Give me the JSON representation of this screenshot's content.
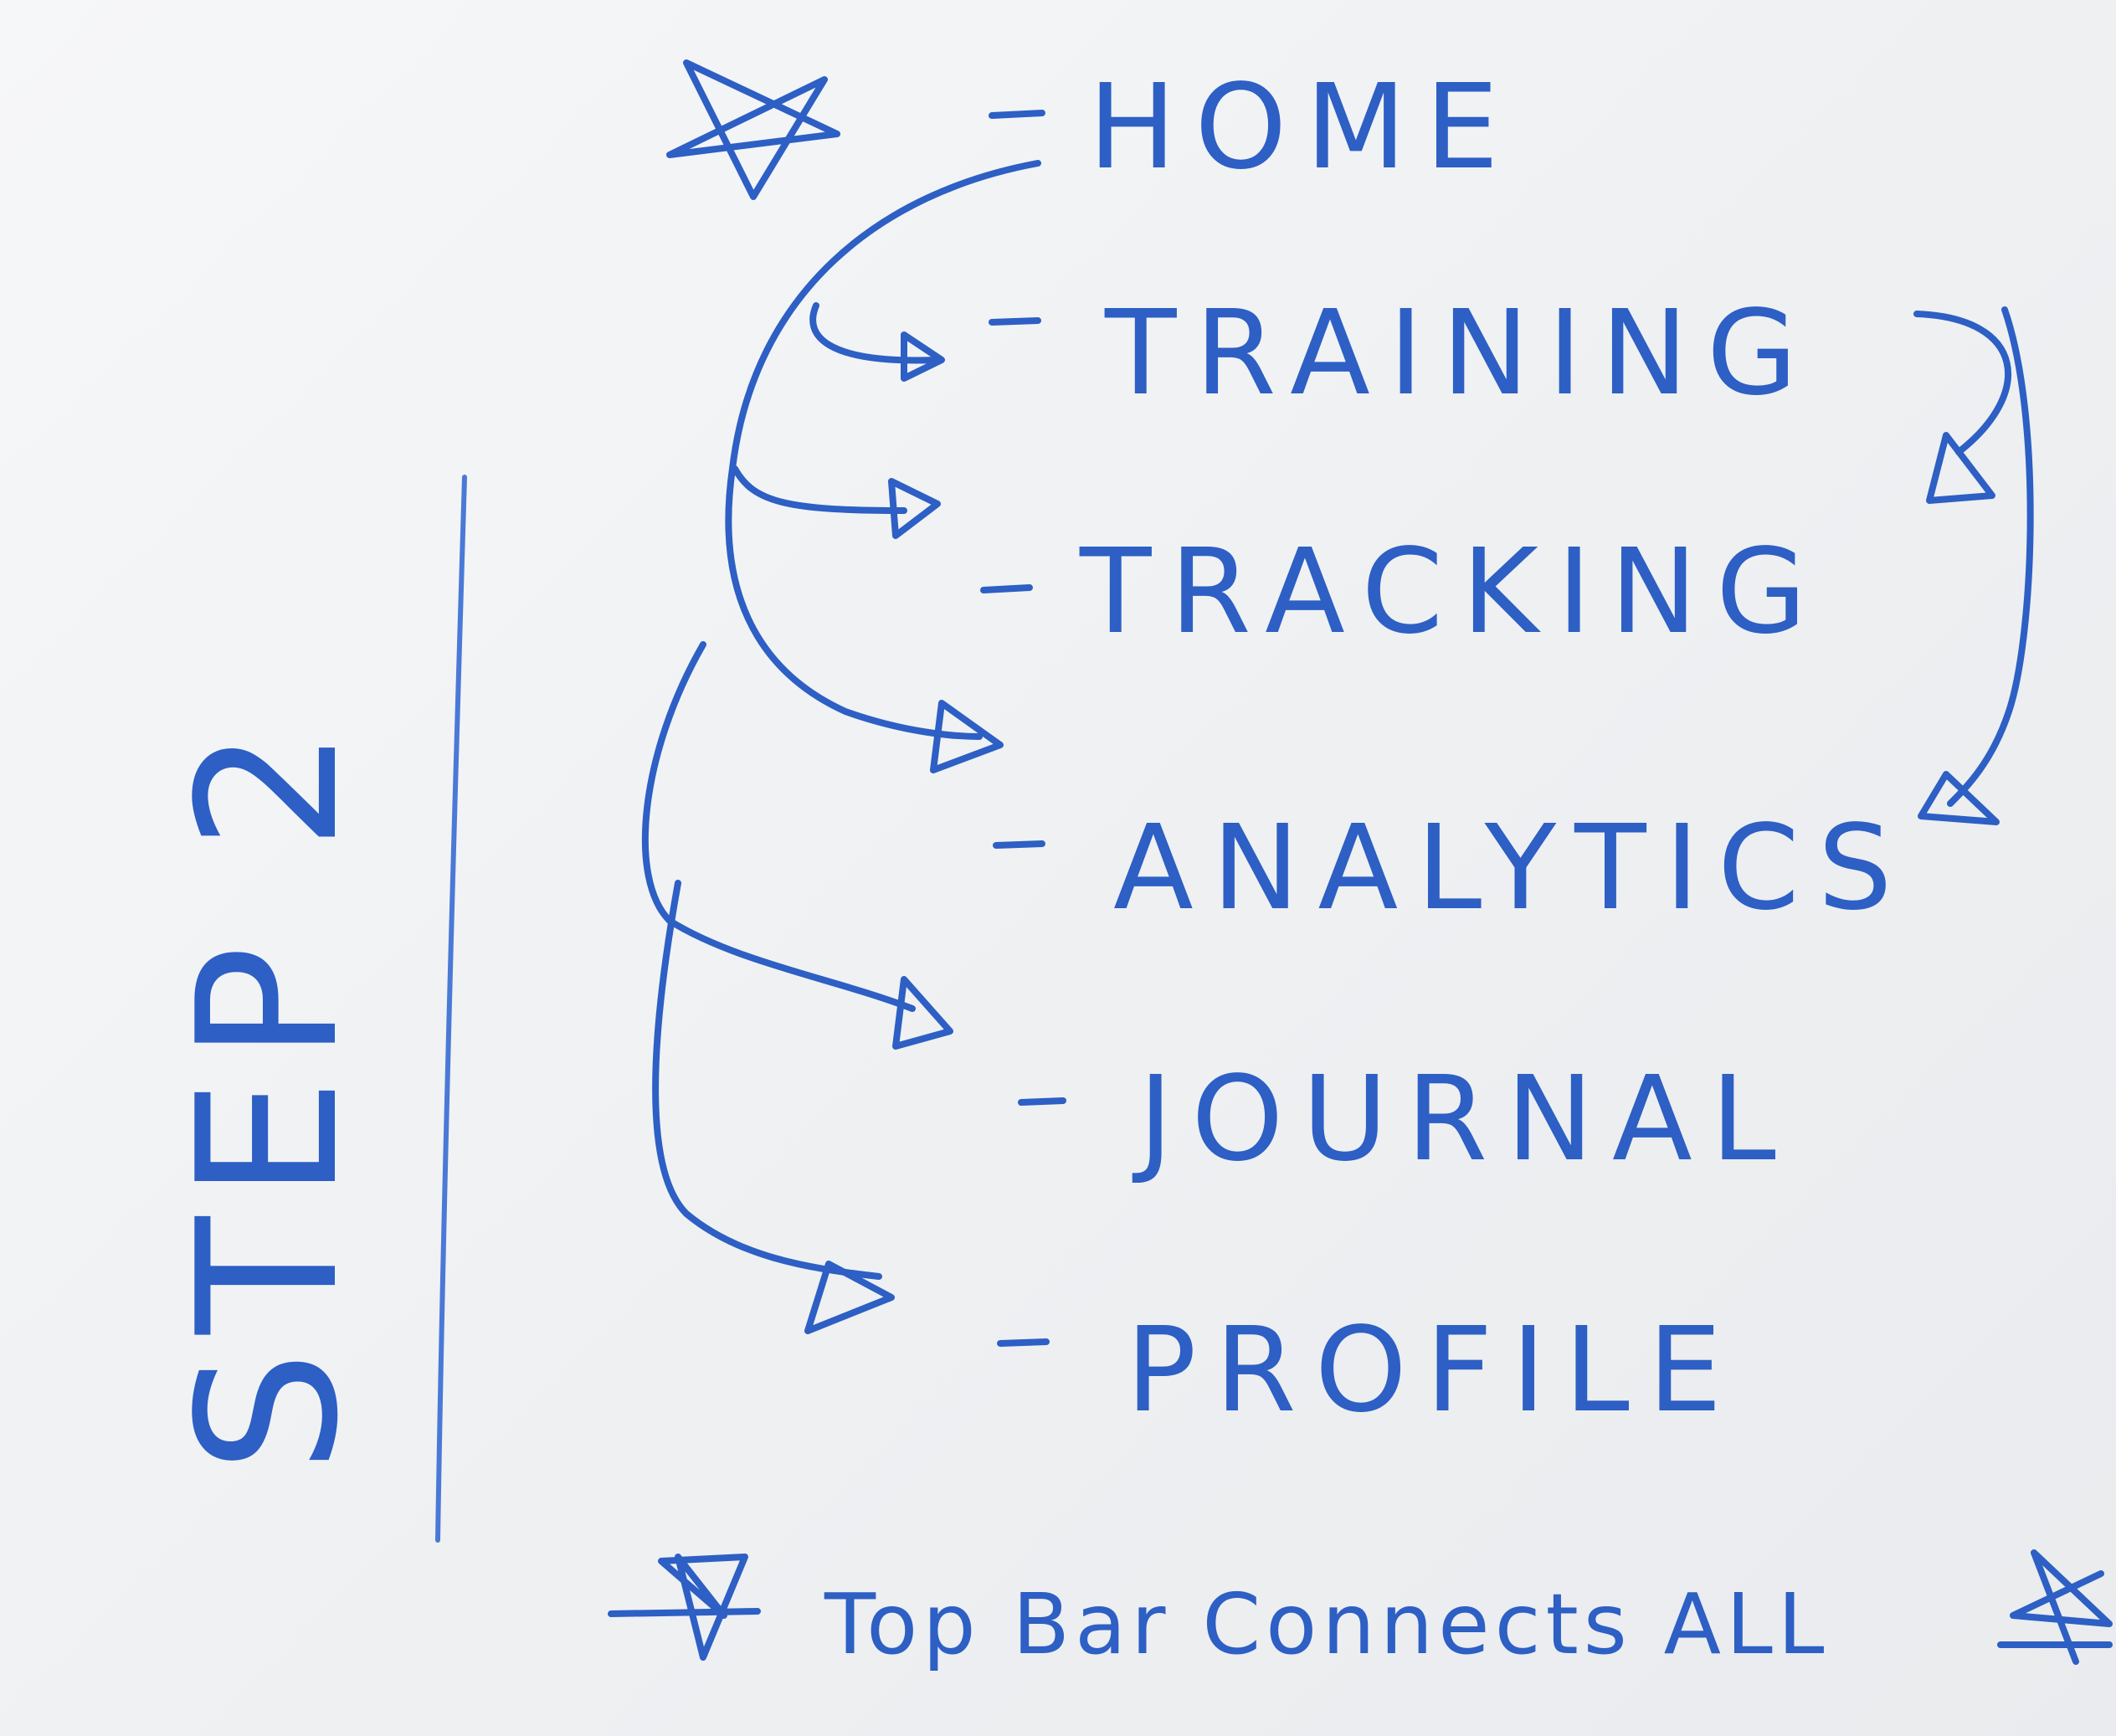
{
  "diagram": {
    "step_label": "STEP 2",
    "items": [
      {
        "label": "HOME",
        "starred": true
      },
      {
        "label": "TRAINING"
      },
      {
        "label": "TRACKING"
      },
      {
        "label": "ANALYTICS"
      },
      {
        "label": "JOURNAL"
      },
      {
        "label": "PROFILE"
      }
    ],
    "footer_note": "Top Bar Connects ALL",
    "ink_color": "#2d5fc4",
    "icons": [
      "star-icon",
      "arrow-icon"
    ]
  }
}
